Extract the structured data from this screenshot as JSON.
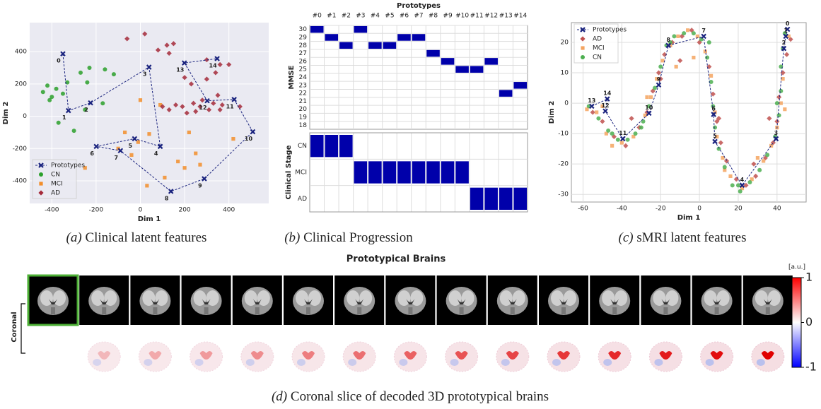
{
  "chart_data": [
    {
      "type": "scatter",
      "xlabel": "Dim 1",
      "ylabel": "Dim 2",
      "xlim": [
        -500,
        580
      ],
      "ylim": [
        -540,
        580
      ],
      "xticks": [
        -400,
        -200,
        0,
        200,
        400
      ],
      "yticks": [
        -400,
        -200,
        0,
        200,
        400
      ],
      "background": "#eaeaf2",
      "grid_color": "#ffffff",
      "legend": "lower left",
      "series": [
        {
          "name": "Prototypes",
          "color": "#1a237e",
          "marker": "x",
          "line": true,
          "labels": [
            "0",
            "1",
            "2",
            "3",
            "4",
            "5",
            "6",
            "7",
            "8",
            "9",
            "10",
            "11",
            "12",
            "13",
            "14"
          ],
          "x": [
            -350,
            -325,
            -225,
            39,
            90,
            -26,
            -199,
            -90,
            138,
            289,
            508,
            424,
            302,
            199,
            347
          ],
          "y": [
            387,
            35,
            83,
            304,
            -187,
            -139,
            -187,
            -213,
            -465,
            -387,
            -96,
            104,
            96,
            330,
            357
          ]
        },
        {
          "name": "CN",
          "color": "#2ca02c",
          "marker": "o",
          "x": [
            -440,
            -420,
            -400,
            -380,
            -350,
            -330,
            -270,
            -240,
            -230,
            -160,
            -170,
            -120,
            -370,
            -300,
            -250,
            -410
          ],
          "y": [
            150,
            190,
            120,
            170,
            140,
            210,
            270,
            210,
            300,
            290,
            80,
            260,
            -40,
            -90,
            40,
            100
          ]
        },
        {
          "name": "MCI",
          "color": "#f28e2b",
          "marker": "s",
          "x": [
            0,
            90,
            -70,
            40,
            -10,
            -100,
            -40,
            220,
            250,
            170,
            270,
            200,
            30,
            -250,
            420,
            110
          ],
          "y": [
            100,
            70,
            -100,
            -110,
            -160,
            -200,
            -240,
            -100,
            -230,
            -280,
            -300,
            -320,
            -430,
            -320,
            -140,
            -380
          ]
        },
        {
          "name": "AD",
          "color": "#a52a3a",
          "marker": "d",
          "x": [
            -60,
            20,
            120,
            150,
            130,
            80,
            300,
            360,
            340,
            400,
            200,
            300,
            230,
            190,
            210,
            240,
            250,
            270,
            280,
            330,
            310,
            370,
            360,
            450,
            350,
            130,
            160,
            100
          ],
          "y": [
            480,
            510,
            440,
            450,
            390,
            410,
            350,
            320,
            270,
            320,
            240,
            230,
            200,
            60,
            20,
            80,
            30,
            60,
            100,
            80,
            40,
            70,
            40,
            60,
            130,
            40,
            70,
            60
          ]
        }
      ]
    },
    {
      "type": "tiles",
      "title": "Prototypes",
      "color": "#0000aa",
      "categories": [
        "#0",
        "#1",
        "#2",
        "#3",
        "#4",
        "#5",
        "#6",
        "#7",
        "#8",
        "#9",
        "#10",
        "#11",
        "#12",
        "#13",
        "#14"
      ],
      "mmse": {
        "label": "MMSE",
        "ylim": [
          17.5,
          30.5
        ],
        "yticks": [
          18,
          19,
          20,
          21,
          22,
          23,
          24,
          25,
          26,
          27,
          28,
          29,
          30
        ],
        "values": [
          30,
          29,
          28,
          30,
          28,
          28,
          29,
          29,
          27,
          26,
          25,
          25,
          26,
          22,
          23
        ]
      },
      "stage": {
        "label": "Clinical Stage",
        "categories": [
          "CN",
          "MCI",
          "AD"
        ],
        "values": [
          "CN",
          "CN",
          "CN",
          "MCI",
          "MCI",
          "MCI",
          "MCI",
          "MCI",
          "MCI",
          "MCI",
          "MCI",
          "AD",
          "AD",
          "AD",
          "AD"
        ]
      }
    },
    {
      "type": "scatter",
      "xlabel": "Dim 1",
      "ylabel": "Dim 2",
      "xlim": [
        -66,
        55
      ],
      "ylim": [
        -32.5,
        26.5
      ],
      "xticks": [
        -60,
        -40,
        -20,
        0,
        20,
        40
      ],
      "yticks": [
        -30,
        -20,
        -10,
        0,
        10,
        20
      ],
      "background": "#ffffff",
      "grid_color": "#dddddd",
      "legend": "upper left",
      "series": [
        {
          "name": "Prototypes",
          "color": "#1a237e",
          "marker": "x",
          "line": true,
          "labels": [
            "13",
            "14",
            "12",
            "11",
            "10",
            "9",
            "8",
            "7",
            "6",
            "5",
            "4",
            "3",
            "2",
            "1",
            "0"
          ],
          "x": [
            -55.5,
            -47.5,
            -48.5,
            -39.5,
            -26,
            -21,
            -16,
            2.2,
            7.3,
            8,
            22,
            39.5,
            43.5,
            44.5,
            45.4
          ],
          "y": [
            -1,
            1.4,
            -2.6,
            -11.7,
            -3.3,
            6,
            19,
            22,
            -3.7,
            -12.6,
            -27,
            -11.7,
            18,
            22,
            24.3
          ]
        },
        {
          "name": "AD",
          "color": "#c0504d",
          "marker": "d",
          "x": [
            -55,
            -50,
            -44,
            -38,
            -31,
            -27,
            -24,
            -21,
            -18,
            -14,
            -9,
            -4,
            0,
            5,
            7,
            9,
            11,
            14,
            19,
            24,
            29,
            34,
            38,
            40,
            41,
            43,
            45,
            47,
            -35,
            -10,
            10,
            28,
            36,
            -20
          ],
          "y": [
            -3,
            -6,
            -11,
            -14,
            -8,
            -3,
            4,
            10,
            16,
            20,
            22,
            24,
            20,
            12,
            3,
            -6,
            -13,
            -19,
            -25,
            -27,
            -24,
            -18,
            -13,
            -6,
            2,
            10,
            16,
            21,
            -5,
            14,
            -5,
            -20,
            -5,
            8
          ]
        },
        {
          "name": "MCI",
          "color": "#f4a460",
          "marker": "s",
          "x": [
            -58,
            -53,
            -48,
            -40,
            -34,
            -28,
            -25,
            -22,
            -19,
            -15,
            -11,
            -6,
            -1,
            3,
            6,
            8,
            9,
            12,
            16,
            22,
            27,
            33,
            37,
            40,
            42,
            43,
            46,
            -45,
            -27,
            -12,
            -3,
            13,
            30,
            44,
            -50
          ],
          "y": [
            -2,
            -3,
            -10,
            -13,
            -11,
            -4,
            2,
            8,
            14,
            19,
            22,
            24,
            22,
            17,
            9,
            -3,
            -11,
            -18,
            -24,
            -28,
            -25,
            -19,
            -14,
            -8,
            0,
            8,
            22,
            -14,
            2,
            12,
            15,
            -22,
            -18,
            -2,
            -1
          ]
        },
        {
          "name": "CN",
          "color": "#4caf50",
          "marker": "o",
          "x": [
            -57,
            -52,
            -47,
            -42,
            -37,
            -33,
            -29,
            -26,
            -23,
            -20,
            -17,
            -13,
            -8,
            -3,
            1,
            4,
            6,
            7,
            8,
            10,
            13,
            17,
            21,
            26,
            31,
            35,
            39,
            41,
            42,
            42,
            43,
            44,
            -45,
            -30,
            -15,
            5,
            20,
            40
          ],
          "y": [
            -1,
            -5,
            -9,
            -12,
            -12,
            -10,
            -6,
            -1,
            5,
            12,
            19,
            22,
            23,
            23,
            21,
            15,
            7,
            -1,
            -8,
            -15,
            -21,
            -27,
            -29,
            -26,
            -22,
            -17,
            -11,
            -4,
            4,
            12,
            18,
            23,
            -10,
            -8,
            20,
            20,
            -27,
            0
          ]
        }
      ]
    }
  ],
  "captions": [
    {
      "tag": "(a)",
      "text": "Clinical latent features"
    },
    {
      "tag": "(b)",
      "text": "Clinical Progression"
    },
    {
      "tag": "(c)",
      "text": "sMRI latent features"
    },
    {
      "tag": "(d)",
      "text": "Coronal slice of decoded 3D prototypical brains"
    }
  ],
  "brains": {
    "title": "Prototypical Brains",
    "row_label": "Coronal",
    "colorbar": {
      "label": "[a.u.]",
      "lim": [
        -1,
        1
      ],
      "ticks": [
        1,
        0,
        -1
      ]
    }
  }
}
